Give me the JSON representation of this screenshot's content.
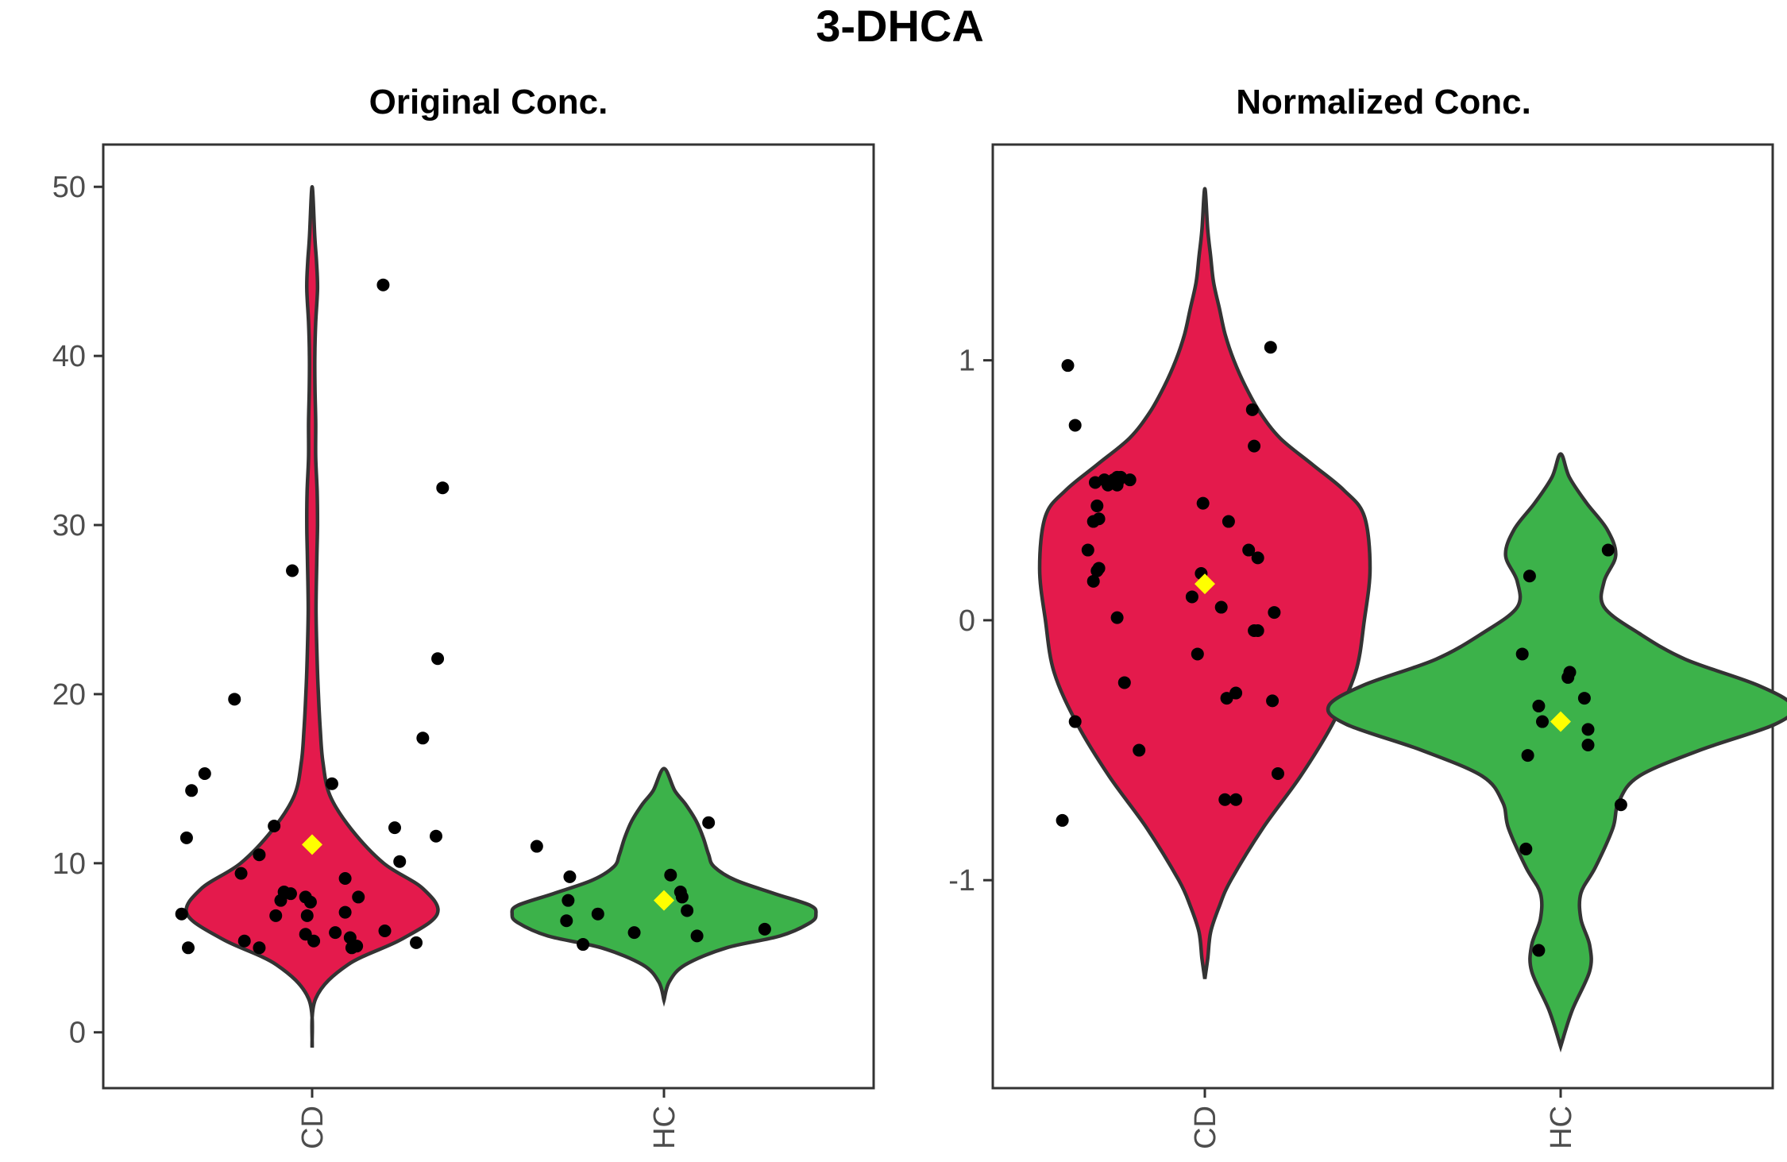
{
  "title": "3-DHCA",
  "chart_data": [
    {
      "type": "violin",
      "title": "Original Conc.",
      "xlabel": "",
      "ylabel": "",
      "categories": [
        "CD",
        "HC"
      ],
      "colors": {
        "CD": "#e41a4c",
        "HC": "#3cb24a",
        "mean_marker": "#ffff00",
        "points": "#000000"
      },
      "ylim": [
        -3.3,
        52.5
      ],
      "yticks": [
        0,
        10,
        20,
        30,
        40,
        50
      ],
      "ytick_labels": [
        "0",
        "10",
        "20",
        "30",
        "40",
        "50"
      ],
      "grid": false,
      "means": {
        "CD": 11.1,
        "HC": 7.8
      },
      "violins": {
        "CD": {
          "y": [
            -0.9,
            2,
            4,
            5.5,
            7,
            8.5,
            10,
            12,
            14,
            16,
            18,
            20,
            22,
            25,
            28,
            30,
            32,
            34,
            36,
            38,
            40,
            42,
            44,
            45.5,
            47,
            50
          ],
          "halfwidth": [
            0,
            0.02,
            0.2,
            0.5,
            0.7,
            0.62,
            0.4,
            0.22,
            0.1,
            0.06,
            0.045,
            0.035,
            0.028,
            0.022,
            0.026,
            0.03,
            0.028,
            0.02,
            0.02,
            0.016,
            0.015,
            0.02,
            0.03,
            0.025,
            0.015,
            0
          ]
        },
        "HC": {
          "y": [
            1.9,
            3,
            4,
            5,
            5.7,
            6.5,
            7,
            7.5,
            8.2,
            9,
            9.8,
            10.5,
            11.5,
            12.5,
            13.5,
            14.3,
            15.6
          ],
          "halfwidth": [
            0,
            0.03,
            0.12,
            0.35,
            0.65,
            0.82,
            0.85,
            0.82,
            0.62,
            0.4,
            0.28,
            0.25,
            0.22,
            0.18,
            0.12,
            0.06,
            0
          ]
        }
      },
      "points": [
        {
          "group": "CD",
          "offset": -0.65,
          "y": 15.3
        },
        {
          "group": "CD",
          "offset": -0.73,
          "y": 14.3
        },
        {
          "group": "CD",
          "offset": -0.76,
          "y": 11.5
        },
        {
          "group": "CD",
          "offset": -0.79,
          "y": 7.0
        },
        {
          "group": "CD",
          "offset": -0.75,
          "y": 5.0
        },
        {
          "group": "CD",
          "offset": -0.47,
          "y": 19.7
        },
        {
          "group": "CD",
          "offset": -0.43,
          "y": 9.4
        },
        {
          "group": "CD",
          "offset": -0.41,
          "y": 5.4
        },
        {
          "group": "CD",
          "offset": -0.32,
          "y": 5.0
        },
        {
          "group": "CD",
          "offset": -0.32,
          "y": 10.5
        },
        {
          "group": "CD",
          "offset": -0.23,
          "y": 12.2
        },
        {
          "group": "CD",
          "offset": -0.22,
          "y": 6.9
        },
        {
          "group": "CD",
          "offset": -0.19,
          "y": 7.8
        },
        {
          "group": "CD",
          "offset": -0.17,
          "y": 8.3
        },
        {
          "group": "CD",
          "offset": -0.13,
          "y": 8.2
        },
        {
          "group": "CD",
          "offset": -0.12,
          "y": 27.3
        },
        {
          "group": "CD",
          "offset": -0.04,
          "y": 8.0
        },
        {
          "group": "CD",
          "offset": -0.04,
          "y": 5.8
        },
        {
          "group": "CD",
          "offset": -0.03,
          "y": 6.9
        },
        {
          "group": "CD",
          "offset": -0.01,
          "y": 7.7
        },
        {
          "group": "CD",
          "offset": 0.01,
          "y": 5.4
        },
        {
          "group": "CD",
          "offset": 0.12,
          "y": 14.7
        },
        {
          "group": "CD",
          "offset": 0.14,
          "y": 5.9
        },
        {
          "group": "CD",
          "offset": 0.2,
          "y": 7.1
        },
        {
          "group": "CD",
          "offset": 0.2,
          "y": 9.1
        },
        {
          "group": "CD",
          "offset": 0.23,
          "y": 5.6
        },
        {
          "group": "CD",
          "offset": 0.24,
          "y": 5.0
        },
        {
          "group": "CD",
          "offset": 0.27,
          "y": 5.1
        },
        {
          "group": "CD",
          "offset": 0.28,
          "y": 8.0
        },
        {
          "group": "CD",
          "offset": 0.44,
          "y": 6.0
        },
        {
          "group": "CD",
          "offset": 0.43,
          "y": 44.2
        },
        {
          "group": "CD",
          "offset": 0.5,
          "y": 12.1
        },
        {
          "group": "CD",
          "offset": 0.53,
          "y": 10.1
        },
        {
          "group": "CD",
          "offset": 0.63,
          "y": 5.3
        },
        {
          "group": "CD",
          "offset": 0.67,
          "y": 17.4
        },
        {
          "group": "CD",
          "offset": 0.75,
          "y": 11.6
        },
        {
          "group": "CD",
          "offset": 0.76,
          "y": 22.1
        },
        {
          "group": "CD",
          "offset": 0.79,
          "y": 32.2
        },
        {
          "group": "HC",
          "offset": -0.77,
          "y": 11.0
        },
        {
          "group": "HC",
          "offset": -0.59,
          "y": 6.6
        },
        {
          "group": "HC",
          "offset": -0.58,
          "y": 7.8
        },
        {
          "group": "HC",
          "offset": -0.57,
          "y": 9.2
        },
        {
          "group": "HC",
          "offset": -0.49,
          "y": 5.2
        },
        {
          "group": "HC",
          "offset": -0.4,
          "y": 7.0
        },
        {
          "group": "HC",
          "offset": -0.18,
          "y": 5.9
        },
        {
          "group": "HC",
          "offset": 0.04,
          "y": 9.3
        },
        {
          "group": "HC",
          "offset": 0.1,
          "y": 8.3
        },
        {
          "group": "HC",
          "offset": 0.11,
          "y": 8.0
        },
        {
          "group": "HC",
          "offset": 0.14,
          "y": 7.2
        },
        {
          "group": "HC",
          "offset": 0.2,
          "y": 5.7
        },
        {
          "group": "HC",
          "offset": 0.27,
          "y": 12.4
        },
        {
          "group": "HC",
          "offset": 0.61,
          "y": 6.1
        }
      ]
    },
    {
      "type": "violin",
      "title": "Normalized Conc.",
      "xlabel": "",
      "ylabel": "",
      "categories": [
        "CD",
        "HC"
      ],
      "colors": {
        "CD": "#e41a4c",
        "HC": "#3cb24a",
        "mean_marker": "#ffff00",
        "points": "#000000"
      },
      "ylim": [
        -1.8,
        1.83
      ],
      "yticks": [
        -1,
        0,
        1
      ],
      "ytick_labels": [
        "-1",
        "0",
        "1"
      ],
      "grid": false,
      "means": {
        "CD": 0.14,
        "HC": -0.39
      },
      "violins": {
        "CD": {
          "y": [
            -1.38,
            -1.3,
            -1.2,
            -1.1,
            -1.0,
            -0.8,
            -0.6,
            -0.4,
            -0.2,
            0,
            0.2,
            0.4,
            0.5,
            0.6,
            0.7,
            0.8,
            0.9,
            1.0,
            1.1,
            1.2,
            1.3,
            1.4,
            1.5,
            1.66
          ],
          "halfwidth": [
            0,
            0.01,
            0.02,
            0.05,
            0.09,
            0.2,
            0.33,
            0.44,
            0.52,
            0.55,
            0.57,
            0.55,
            0.48,
            0.37,
            0.26,
            0.19,
            0.14,
            0.1,
            0.07,
            0.05,
            0.03,
            0.02,
            0.01,
            0
          ]
        },
        "HC": {
          "y": [
            -1.64,
            -1.5,
            -1.35,
            -1.25,
            -1.15,
            -1.05,
            -0.95,
            -0.8,
            -0.7,
            -0.6,
            -0.5,
            -0.4,
            -0.33,
            -0.25,
            -0.15,
            -0.05,
            0.05,
            0.15,
            0.25,
            0.35,
            0.45,
            0.55,
            0.64
          ],
          "halfwidth": [
            0,
            0.04,
            0.1,
            0.1,
            0.07,
            0.07,
            0.12,
            0.18,
            0.2,
            0.27,
            0.48,
            0.74,
            0.8,
            0.68,
            0.43,
            0.27,
            0.15,
            0.15,
            0.19,
            0.16,
            0.09,
            0.03,
            0
          ]
        }
      },
      "points": [
        {
          "group": "CD",
          "offset": -0.75,
          "y": 0.98
        },
        {
          "group": "CD",
          "offset": -0.71,
          "y": 0.75
        },
        {
          "group": "CD",
          "offset": -0.55,
          "y": 0.54
        },
        {
          "group": "CD",
          "offset": -0.5,
          "y": 0.54
        },
        {
          "group": "CD",
          "offset": -0.46,
          "y": 0.55
        },
        {
          "group": "CD",
          "offset": -0.6,
          "y": 0.53
        },
        {
          "group": "CD",
          "offset": -0.53,
          "y": 0.52
        },
        {
          "group": "CD",
          "offset": -0.48,
          "y": 0.52
        },
        {
          "group": "CD",
          "offset": -0.47,
          "y": 0.54
        },
        {
          "group": "CD",
          "offset": -0.48,
          "y": 0.55
        },
        {
          "group": "CD",
          "offset": -0.41,
          "y": 0.54
        },
        {
          "group": "CD",
          "offset": -0.59,
          "y": 0.44
        },
        {
          "group": "CD",
          "offset": -0.61,
          "y": 0.38
        },
        {
          "group": "CD",
          "offset": -0.58,
          "y": 0.39
        },
        {
          "group": "CD",
          "offset": -0.64,
          "y": 0.27
        },
        {
          "group": "CD",
          "offset": -0.59,
          "y": 0.19
        },
        {
          "group": "CD",
          "offset": -0.61,
          "y": 0.15
        },
        {
          "group": "CD",
          "offset": -0.58,
          "y": 0.2
        },
        {
          "group": "CD",
          "offset": -0.48,
          "y": 0.01
        },
        {
          "group": "CD",
          "offset": -0.44,
          "y": -0.24
        },
        {
          "group": "CD",
          "offset": -0.71,
          "y": -0.39
        },
        {
          "group": "CD",
          "offset": -0.36,
          "y": -0.5
        },
        {
          "group": "CD",
          "offset": -0.78,
          "y": -0.77
        },
        {
          "group": "CD",
          "offset": -0.07,
          "y": 0.09
        },
        {
          "group": "CD",
          "offset": -0.04,
          "y": -0.13
        },
        {
          "group": "CD",
          "offset": -0.02,
          "y": 0.18
        },
        {
          "group": "CD",
          "offset": -0.01,
          "y": 0.45
        },
        {
          "group": "CD",
          "offset": 0.09,
          "y": 0.05
        },
        {
          "group": "CD",
          "offset": 0.13,
          "y": 0.38
        },
        {
          "group": "CD",
          "offset": 0.12,
          "y": -0.3
        },
        {
          "group": "CD",
          "offset": 0.17,
          "y": -0.28
        },
        {
          "group": "CD",
          "offset": 0.11,
          "y": -0.69
        },
        {
          "group": "CD",
          "offset": 0.17,
          "y": -0.69
        },
        {
          "group": "CD",
          "offset": 0.24,
          "y": 0.27
        },
        {
          "group": "CD",
          "offset": 0.27,
          "y": -0.04
        },
        {
          "group": "CD",
          "offset": 0.29,
          "y": -0.04
        },
        {
          "group": "CD",
          "offset": 0.29,
          "y": 0.24
        },
        {
          "group": "CD",
          "offset": 0.26,
          "y": 0.81
        },
        {
          "group": "CD",
          "offset": 0.27,
          "y": 0.67
        },
        {
          "group": "CD",
          "offset": 0.36,
          "y": 1.05
        },
        {
          "group": "CD",
          "offset": 0.38,
          "y": 0.03
        },
        {
          "group": "CD",
          "offset": 0.37,
          "y": -0.31
        },
        {
          "group": "CD",
          "offset": 0.4,
          "y": -0.59
        },
        {
          "group": "HC",
          "offset": -0.21,
          "y": -0.13
        },
        {
          "group": "HC",
          "offset": -0.17,
          "y": 0.17
        },
        {
          "group": "HC",
          "offset": -0.18,
          "y": -0.52
        },
        {
          "group": "HC",
          "offset": -0.19,
          "y": -0.88
        },
        {
          "group": "HC",
          "offset": -0.12,
          "y": -0.33
        },
        {
          "group": "HC",
          "offset": -0.1,
          "y": -0.39
        },
        {
          "group": "HC",
          "offset": -0.12,
          "y": -1.27
        },
        {
          "group": "HC",
          "offset": 0.04,
          "y": -0.22
        },
        {
          "group": "HC",
          "offset": 0.05,
          "y": -0.2
        },
        {
          "group": "HC",
          "offset": 0.13,
          "y": -0.3
        },
        {
          "group": "HC",
          "offset": 0.15,
          "y": -0.42
        },
        {
          "group": "HC",
          "offset": 0.15,
          "y": -0.48
        },
        {
          "group": "HC",
          "offset": 0.26,
          "y": 0.27
        },
        {
          "group": "HC",
          "offset": 0.33,
          "y": -0.71
        }
      ]
    }
  ]
}
